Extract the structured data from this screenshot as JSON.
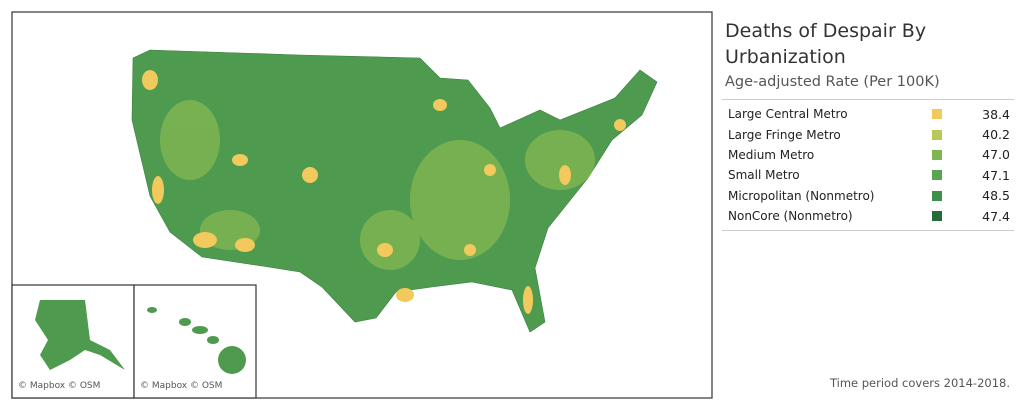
{
  "header": {
    "title": "Deaths of Despair By Urbanization",
    "subtitle": "Age-adjusted Rate (Per 100K)"
  },
  "legend": {
    "rows": [
      {
        "label": "Large Central Metro",
        "color": "#f2c95c",
        "value": "38.4"
      },
      {
        "label": "Large Fringe Metro",
        "color": "#b7c95a",
        "value": "40.2"
      },
      {
        "label": "Medium Metro",
        "color": "#7fb552",
        "value": "47.0"
      },
      {
        "label": "Small Metro",
        "color": "#58a651",
        "value": "47.1"
      },
      {
        "label": "Micropolitan (Nonmetro)",
        "color": "#3d8f4b",
        "value": "48.5"
      },
      {
        "label": "NonCore (Nonmetro)",
        "color": "#256b3a",
        "value": "47.4"
      }
    ]
  },
  "map": {
    "alaska_attribution": "© Mapbox © OSM",
    "hawaii_attribution": "© Mapbox © OSM"
  },
  "footnote": "Time period covers 2014-2018."
}
